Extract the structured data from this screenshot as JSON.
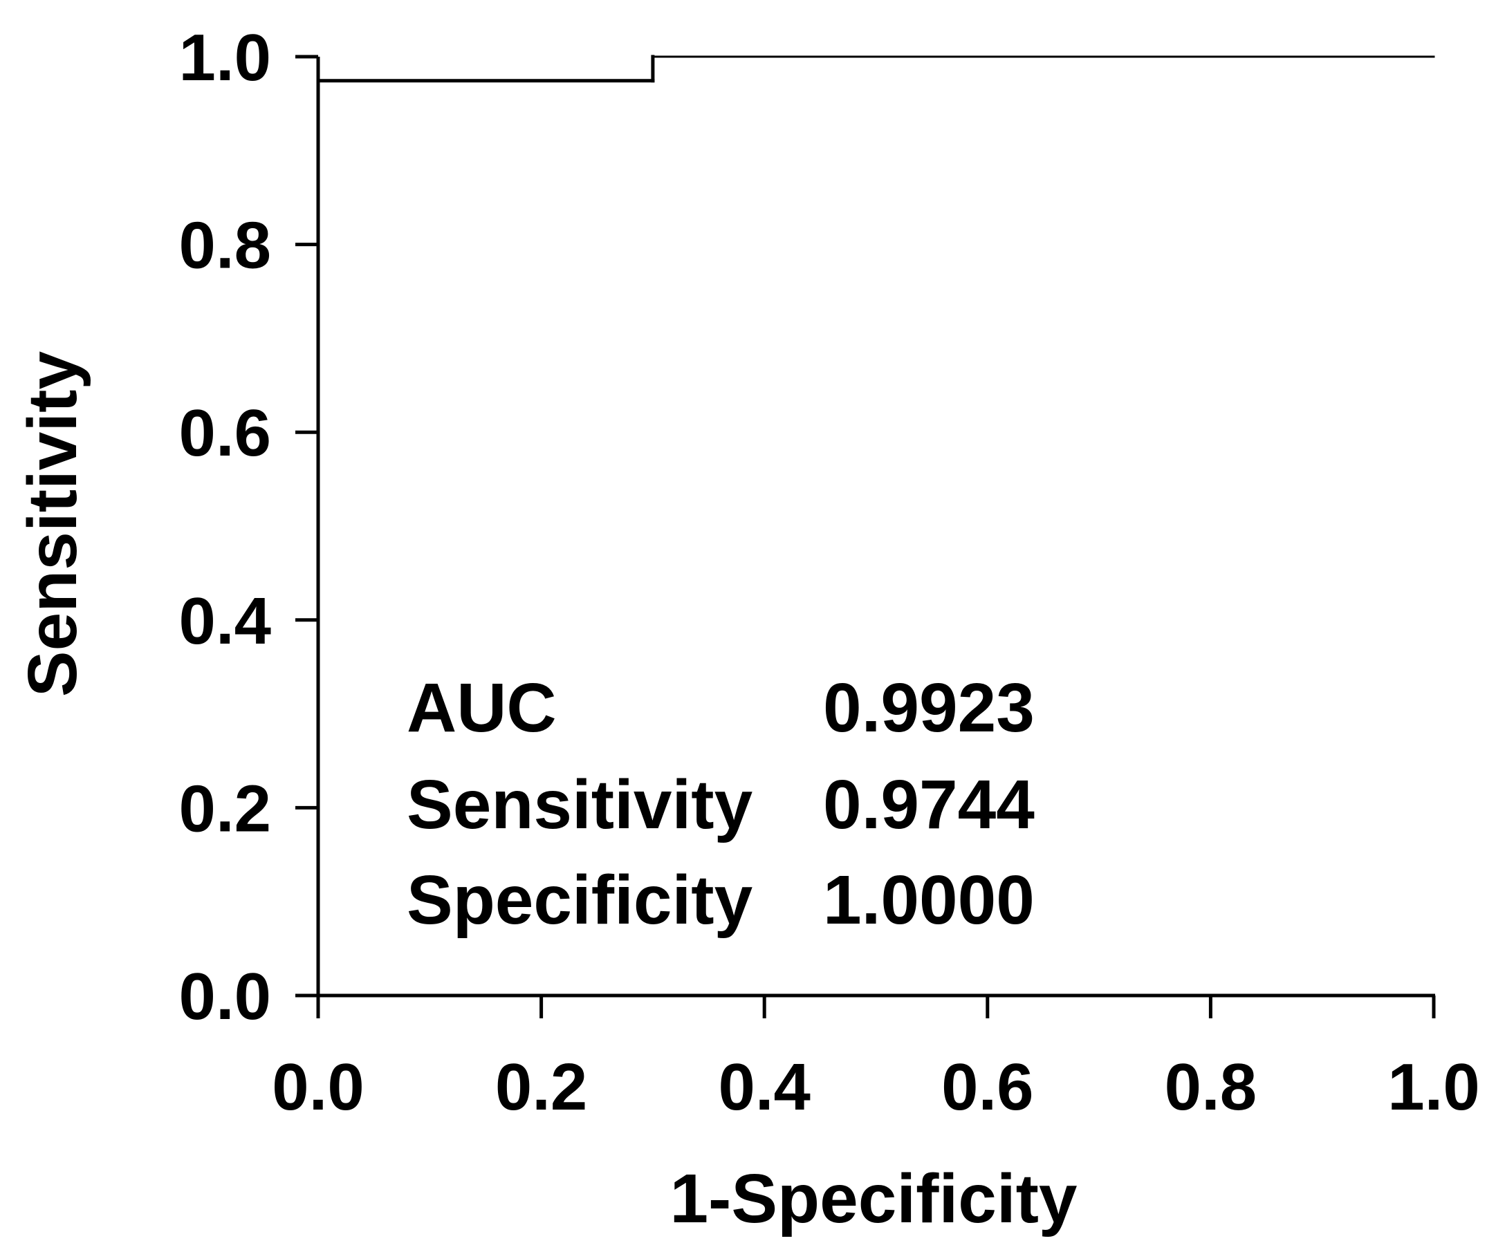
{
  "chart_data": {
    "type": "line",
    "xlabel": "1-Specificity",
    "ylabel": "Sensitivity",
    "xlim": [
      0,
      1
    ],
    "ylim": [
      0,
      1
    ],
    "xticks": [
      "0.0",
      "0.2",
      "0.4",
      "0.6",
      "0.8",
      "1.0"
    ],
    "yticks": [
      "0.0",
      "0.2",
      "0.4",
      "0.6",
      "0.8",
      "1.0"
    ],
    "grid": false,
    "series": [
      {
        "x": [
          0.0,
          0.0,
          0.3,
          0.3,
          1.0
        ],
        "y": [
          0.0,
          0.9744,
          0.9744,
          1.0,
          1.0
        ],
        "color": "#000000"
      }
    ],
    "annotations": [
      {
        "label": "AUC",
        "value": "0.9923"
      },
      {
        "label": "Sensitivity",
        "value": "0.9744"
      },
      {
        "label": "Specificity",
        "value": "1.0000"
      }
    ]
  }
}
